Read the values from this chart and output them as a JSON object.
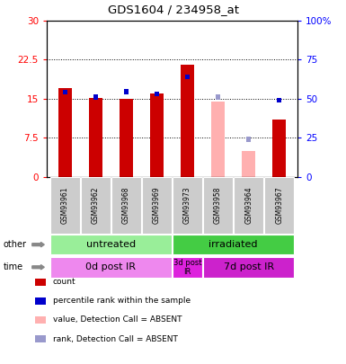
{
  "title": "GDS1604 / 234958_at",
  "samples": [
    "GSM93961",
    "GSM93962",
    "GSM93968",
    "GSM93969",
    "GSM93973",
    "GSM93958",
    "GSM93964",
    "GSM93967"
  ],
  "count_values": [
    17.0,
    15.2,
    15.0,
    16.0,
    21.5,
    null,
    null,
    11.0
  ],
  "count_absent_values": [
    null,
    null,
    null,
    null,
    null,
    14.5,
    5.0,
    null
  ],
  "rank_values": [
    54.0,
    51.0,
    54.5,
    53.0,
    64.0,
    null,
    null,
    49.0
  ],
  "rank_absent_values": [
    null,
    null,
    null,
    null,
    null,
    51.0,
    24.0,
    null
  ],
  "ylim_left": [
    0,
    30
  ],
  "ylim_right": [
    0,
    100
  ],
  "yticks_left": [
    0,
    7.5,
    15,
    22.5,
    30
  ],
  "ytick_labels_left": [
    "0",
    "7.5",
    "15",
    "22.5",
    "30"
  ],
  "yticks_right": [
    0,
    25,
    50,
    75,
    100
  ],
  "ytick_labels_right": [
    "0",
    "25",
    "50",
    "75",
    "100%"
  ],
  "bar_color_present": "#cc0000",
  "bar_color_absent": "#ffb0b0",
  "rank_color_present": "#0000cc",
  "rank_color_absent": "#9999cc",
  "groups": [
    {
      "label": "untreated",
      "start": 0,
      "end": 4,
      "color": "#99ee99"
    },
    {
      "label": "irradiated",
      "start": 4,
      "end": 8,
      "color": "#44cc44"
    }
  ],
  "time_groups": [
    {
      "label": "0d post IR",
      "start": 0,
      "end": 4,
      "color": "#ee88ee"
    },
    {
      "label": "3d post\nIR",
      "start": 4,
      "end": 5,
      "color": "#dd22dd"
    },
    {
      "label": "7d post IR",
      "start": 5,
      "end": 8,
      "color": "#cc22cc"
    }
  ],
  "legend_items": [
    {
      "label": "count",
      "color": "#cc0000"
    },
    {
      "label": "percentile rank within the sample",
      "color": "#0000cc"
    },
    {
      "label": "value, Detection Call = ABSENT",
      "color": "#ffb0b0"
    },
    {
      "label": "rank, Detection Call = ABSENT",
      "color": "#9999cc"
    }
  ],
  "other_label": "other",
  "time_label": "time"
}
